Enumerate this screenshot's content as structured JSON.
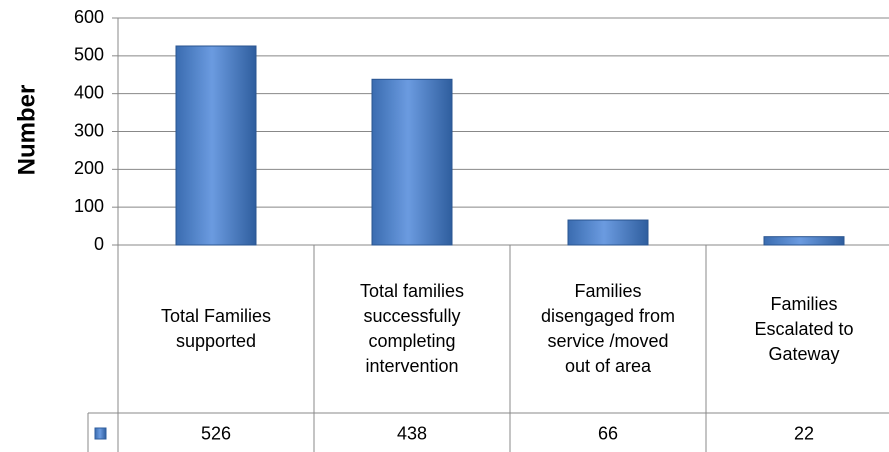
{
  "chart_data": {
    "type": "bar",
    "y_label": "Number",
    "categories": [
      "Total Families supported",
      "Total families successfully completing intervention",
      "Families disengaged from service /moved out of area",
      "Families Escalated to Gateway"
    ],
    "values": [
      526,
      438,
      66,
      22
    ],
    "color": "#4f81bd",
    "ylim": [
      0,
      600
    ],
    "yticks": [
      0,
      100,
      200,
      300,
      400,
      500,
      600
    ],
    "grid": true
  }
}
